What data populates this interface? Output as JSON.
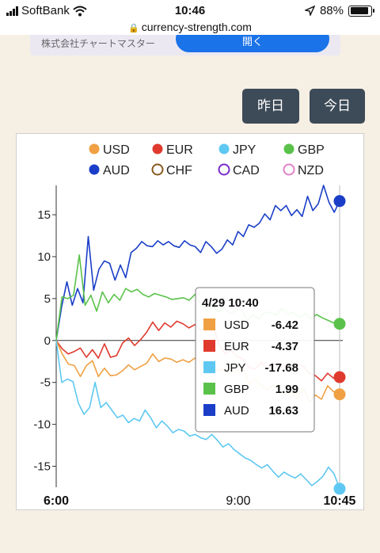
{
  "status_bar": {
    "carrier": "SoftBank",
    "time": "10:46",
    "battery": "88%",
    "battery_level": 0.88
  },
  "browser": {
    "url": "currency-strength.com"
  },
  "ad": {
    "text": "株式会社チャートマスター",
    "button": "開く"
  },
  "buttons": {
    "yesterday": "昨日",
    "today": "今日"
  },
  "chart_data": {
    "type": "line",
    "x_ticks": [
      "6:00",
      "9:00",
      "10:45"
    ],
    "y_ticks": [
      15,
      10,
      5,
      0,
      -5,
      -10,
      -15
    ],
    "ylim": [
      -17.5,
      18.5
    ],
    "grid": false,
    "legend_position": "top",
    "legend": [
      {
        "name": "USD",
        "color": "#f0a042",
        "filled": true
      },
      {
        "name": "EUR",
        "color": "#e03a2e",
        "filled": true
      },
      {
        "name": "JPY",
        "color": "#5ec8f2",
        "filled": true
      },
      {
        "name": "GBP",
        "color": "#5ac24a",
        "filled": true
      },
      {
        "name": "AUD",
        "color": "#1a3ec8",
        "filled": true
      },
      {
        "name": "CHF",
        "color": "#8a5a1e",
        "filled": false
      },
      {
        "name": "CAD",
        "color": "#7a2ac8",
        "filled": false
      },
      {
        "name": "NZD",
        "color": "#e080c8",
        "filled": false
      }
    ],
    "series": [
      {
        "name": "AUD",
        "color": "#1a3ec8",
        "end": 16.63,
        "values": [
          0,
          4,
          7,
          4.2,
          6.2,
          4.5,
          12.4,
          6,
          8.5,
          9.5,
          9.2,
          7.2,
          9,
          7.5,
          10.5,
          11,
          11.8,
          11.3,
          11.2,
          11.9,
          11.4,
          11.8,
          11.3,
          11.1,
          11.9,
          11.4,
          11.2,
          10.5,
          11.8,
          11.2,
          10.4,
          10.9,
          12,
          11.4,
          13,
          12.4,
          13.8,
          13.5,
          14,
          15.1,
          14.4,
          16.1,
          15.5,
          16.1,
          14.9,
          15.6,
          14.8,
          17.2,
          15.5,
          16.3,
          18.5,
          16.5,
          15.3,
          16.63
        ]
      },
      {
        "name": "GBP",
        "color": "#5ac24a",
        "end": 1.99,
        "values": [
          0,
          5.2,
          5,
          5.4,
          10.2,
          4.2,
          5.4,
          3.5,
          5.8,
          4.5,
          5.5,
          4.8,
          6.2,
          5.8,
          6.1,
          5.5,
          5.2,
          5.6,
          5.4,
          5.2,
          4.9,
          5,
          5.1,
          4.8,
          5.5,
          4.3,
          3.6,
          4.1,
          3.4,
          3.9,
          3.2,
          3.5,
          3.8,
          2.4,
          3.1,
          2.6,
          3.3,
          3.4,
          3,
          3.8,
          3.1,
          3.4,
          2.8,
          3.2,
          2.6,
          3.1,
          2.7,
          2.4,
          2.1,
          1.99
        ]
      },
      {
        "name": "EUR",
        "color": "#e03a2e",
        "end": -4.37,
        "values": [
          0,
          -1,
          -1.6,
          -1.3,
          -0.9,
          -2,
          -1.1,
          -2.1,
          -0.4,
          -2,
          -1.8,
          -0.3,
          0.3,
          -0.6,
          0.1,
          1,
          2.2,
          1.2,
          2.1,
          1.6,
          2.3,
          2,
          1.5,
          1.9,
          1.2,
          1.6,
          1.9,
          -0.5,
          -1.6,
          -1.2,
          -1.9,
          -2.2,
          -3.2,
          -3.4,
          -2.6,
          -3.4,
          -2.7,
          -3.3,
          -3,
          -3.4,
          -2.8,
          -3.1,
          -3.9,
          -4.2,
          -4.8,
          -3.9,
          -4.5,
          -4.37
        ]
      },
      {
        "name": "USD",
        "color": "#f0a042",
        "end": -6.42,
        "values": [
          0,
          -1.6,
          -2.8,
          -3,
          -4.3,
          -3,
          -2.4,
          -4.3,
          -3.3,
          -4.2,
          -4.1,
          -3.6,
          -2.9,
          -3.5,
          -3.1,
          -2.7,
          -1.6,
          -2.5,
          -2.1,
          -2.2,
          -2.6,
          -2.3,
          -2.6,
          -2.1,
          -2.6,
          -3.9,
          -3.3,
          -3.6,
          -3.3,
          -3.9,
          -3.6,
          -3.3,
          -5.2,
          -4.6,
          -5.4,
          -5.9,
          -5.3,
          -5.6,
          -6.4,
          -6.1,
          -6.9,
          -5.7,
          -7.3,
          -6.5,
          -7,
          -5.4,
          -6.1,
          -6.42
        ]
      },
      {
        "name": "JPY",
        "color": "#5ec8f2",
        "end": -17.68,
        "values": [
          0,
          -5,
          -4.6,
          -4.9,
          -7.5,
          -8.8,
          -8,
          -5,
          -8,
          -7.4,
          -8.3,
          -9.2,
          -8.9,
          -9.8,
          -9.3,
          -9.6,
          -8.3,
          -9.2,
          -10.4,
          -9.6,
          -10.2,
          -11,
          -10.6,
          -10.8,
          -11.4,
          -11.2,
          -11.6,
          -11.8,
          -11.2,
          -11.9,
          -12.7,
          -12.3,
          -13,
          -13.5,
          -14,
          -14.3,
          -14.8,
          -15.2,
          -14.8,
          -15.6,
          -16.3,
          -15.7,
          -16.1,
          -16.4,
          -15.9,
          -16.6,
          -17.3,
          -16.8,
          -16.2,
          -15.1,
          -15.9,
          -17.68
        ]
      }
    ],
    "tooltip": {
      "title": "4/29 10:40",
      "rows": [
        {
          "name": "USD",
          "value": "-6.42",
          "color": "#f0a042"
        },
        {
          "name": "EUR",
          "value": "-4.37",
          "color": "#e03a2e"
        },
        {
          "name": "JPY",
          "value": "-17.68",
          "color": "#5ec8f2"
        },
        {
          "name": "GBP",
          "value": "1.99",
          "color": "#5ac24a"
        },
        {
          "name": "AUD",
          "value": "16.63",
          "color": "#1a3ec8"
        }
      ]
    }
  }
}
